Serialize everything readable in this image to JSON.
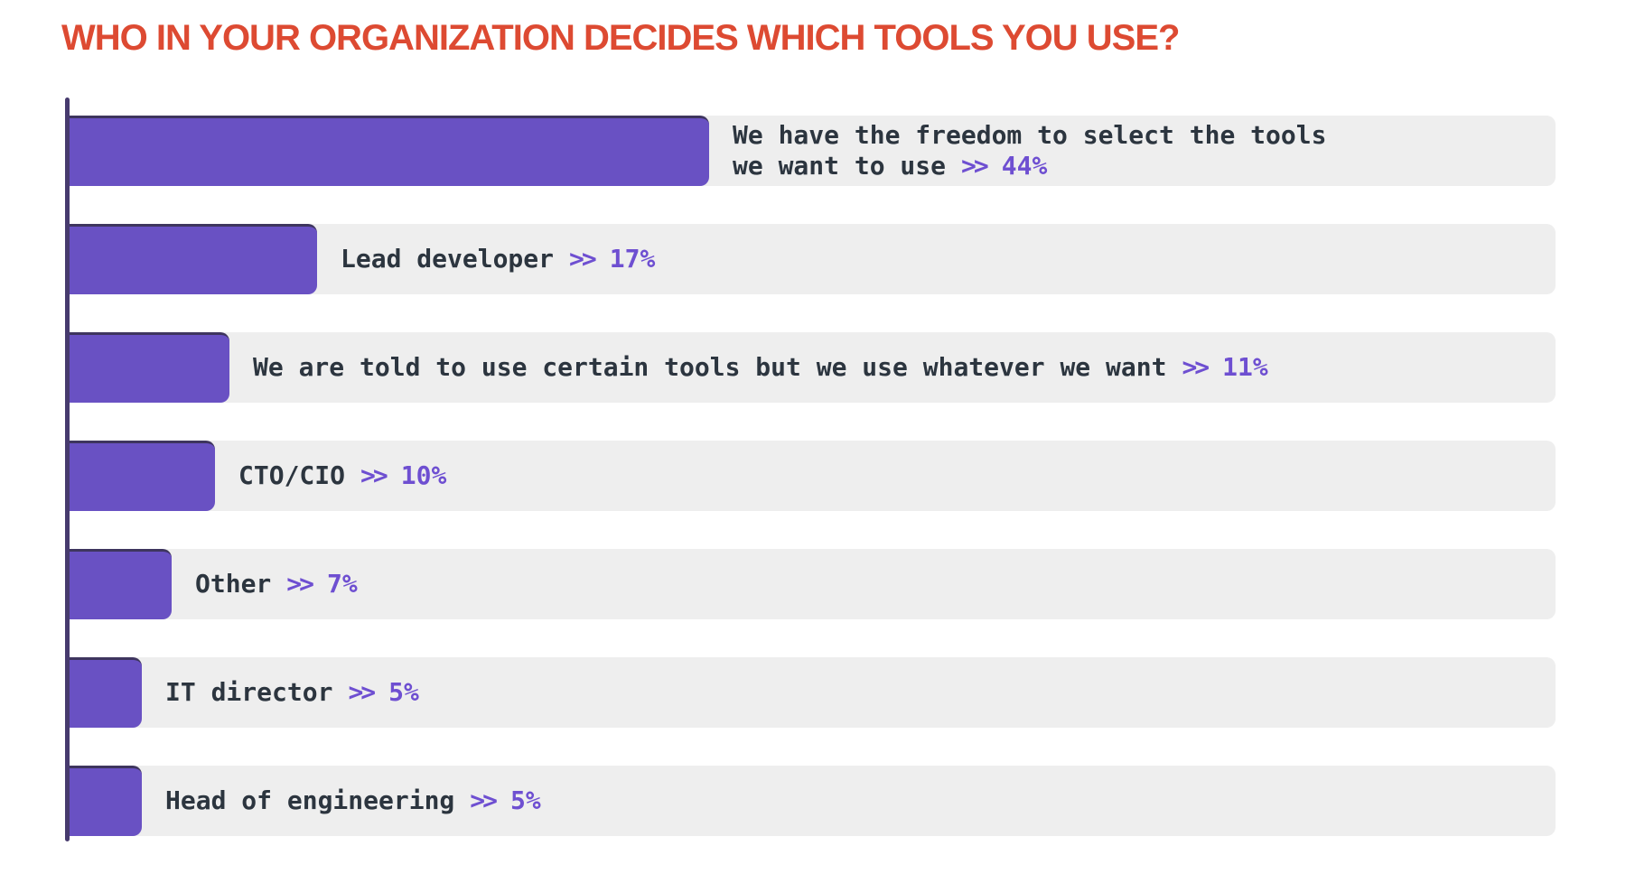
{
  "title": "WHO IN YOUR ORGANIZATION DECIDES WHICH TOOLS YOU USE?",
  "separator_glyph": ">>",
  "colors": {
    "background": "#ffffff",
    "title": "#dd4a32",
    "bar": "#6951c3",
    "bar_top_edge": "#3e355e",
    "track": "#eeeeee",
    "axis": "#473b6e",
    "label_text": "#2c353f",
    "accent_text": "#6e4fd1"
  },
  "chart_data": {
    "type": "bar",
    "orientation": "horizontal",
    "title": "WHO IN YOUR ORGANIZATION DECIDES WHICH TOOLS YOU USE?",
    "categories": [
      "We have the freedom to select the tools\nwe want to use",
      "Lead developer",
      "We are told to use certain tools but we use whatever we want",
      "CTO/CIO",
      "Other",
      "IT director",
      "Head of engineering"
    ],
    "values": [
      44,
      17,
      11,
      10,
      7,
      5,
      5
    ],
    "value_labels": [
      "44%",
      "17%",
      "11%",
      "10%",
      "7%",
      "5%",
      "5%"
    ],
    "xlim": [
      0,
      102
    ],
    "grid": false,
    "legend": false,
    "label_position": "right-of-bar",
    "unit": "%"
  }
}
